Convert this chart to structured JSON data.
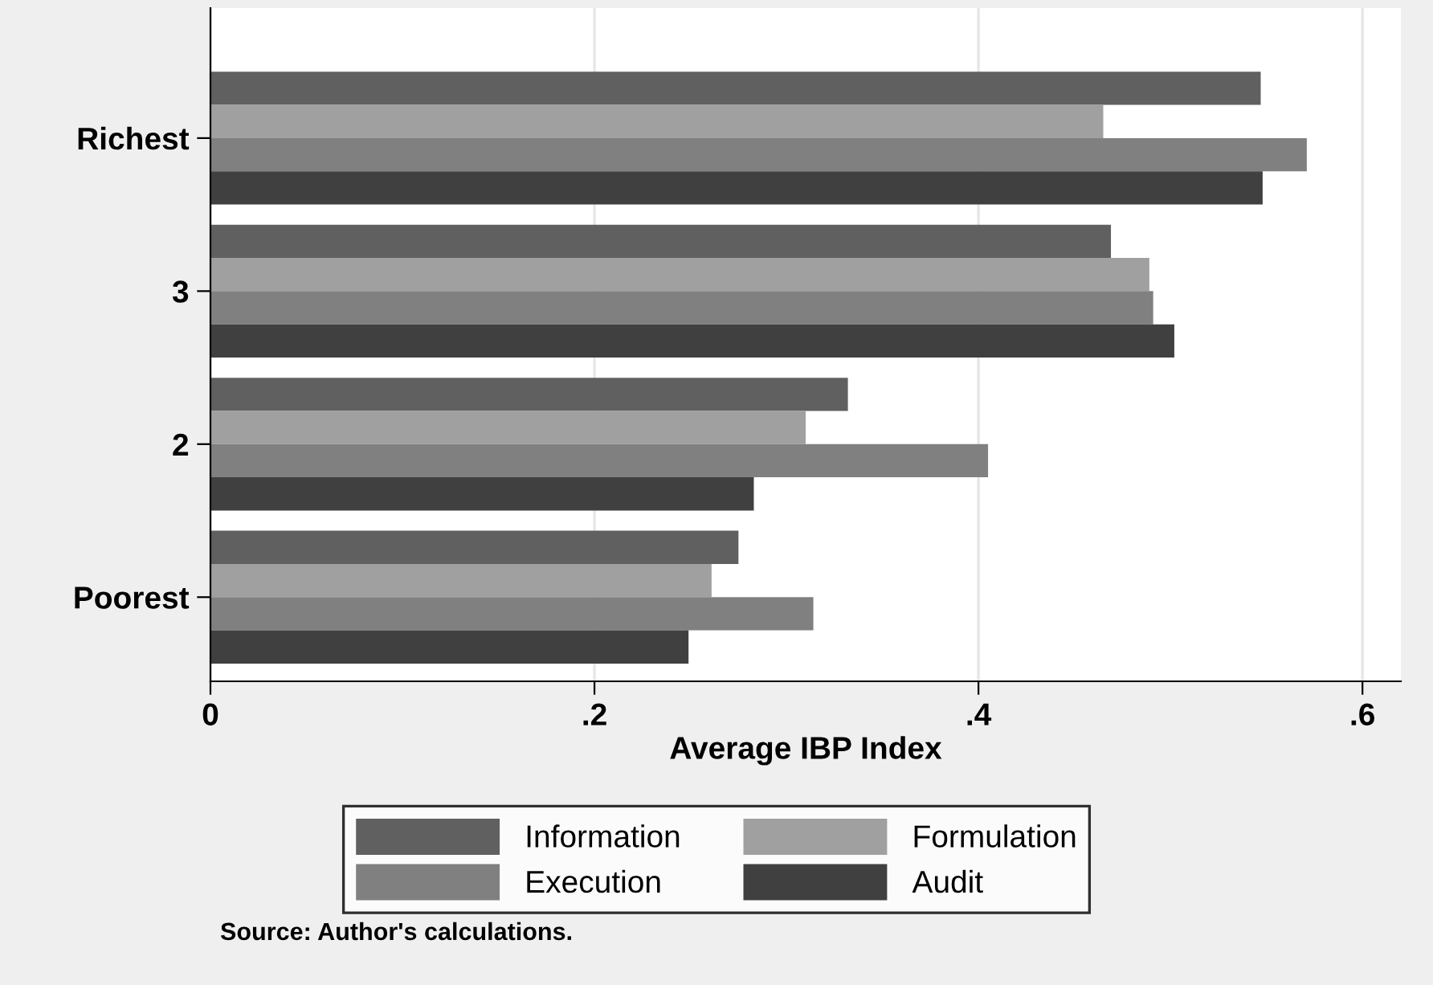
{
  "chart_data": {
    "type": "bar",
    "orientation": "horizontal",
    "xlabel": "Average IBP Index",
    "categories": [
      "Richest",
      "3",
      "2",
      "Poorest"
    ],
    "series": [
      {
        "name": "Information",
        "color": "#606060",
        "values": [
          0.547,
          0.469,
          0.332,
          0.275
        ]
      },
      {
        "name": "Formulation",
        "color": "#a0a0a0",
        "values": [
          0.465,
          0.489,
          0.31,
          0.261
        ]
      },
      {
        "name": "Execution",
        "color": "#808080",
        "values": [
          0.571,
          0.491,
          0.405,
          0.314
        ]
      },
      {
        "name": "Audit",
        "color": "#404040",
        "values": [
          0.548,
          0.502,
          0.283,
          0.249
        ]
      }
    ],
    "xlim": [
      0,
      0.62
    ],
    "xticks": [
      0,
      {
        "value": 0.2,
        "label": ".2"
      },
      {
        "value": 0.4,
        "label": ".4"
      },
      {
        "value": 0.6,
        "label": ".6"
      }
    ],
    "grid": "x",
    "legend": "bottom",
    "annotations": [
      "Source: Author's calculations."
    ]
  }
}
